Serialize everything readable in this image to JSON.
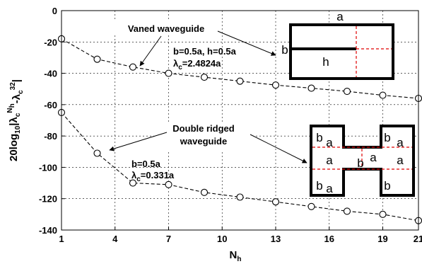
{
  "chart_data": {
    "type": "line",
    "xlabel": {
      "main": "N",
      "sub": "h"
    },
    "ylabel": {
      "a": "20log",
      "b": "10",
      "c": "|λ",
      "d": "c",
      "e": "N",
      "f": "h",
      "g": "-λ",
      "h": "c",
      "i": "32",
      "j": "|"
    },
    "xlim": [
      1,
      21
    ],
    "ylim": [
      -140,
      0
    ],
    "xticks": [
      1,
      4,
      7,
      10,
      13,
      16,
      19,
      21
    ],
    "yticks": [
      0,
      -20,
      -40,
      -60,
      -80,
      -100,
      -120,
      -140
    ],
    "grid": true,
    "series": [
      {
        "x": [
          1,
          3,
          5,
          7,
          9,
          11,
          13,
          15,
          17,
          19,
          21
        ],
        "y": [
          -18,
          -31,
          -36,
          -40,
          -42.5,
          -45,
          -47.5,
          -49.5,
          -51.5,
          -54,
          -56
        ],
        "marker": "circle",
        "line": "dashed"
      },
      {
        "x": [
          1,
          3,
          5,
          7,
          9,
          11,
          13,
          15,
          17,
          19,
          21
        ],
        "y": [
          -65,
          -91,
          -110,
          -111,
          -116,
          -119,
          -122,
          -125,
          -128,
          -130,
          -134
        ],
        "marker": "circle",
        "line": "dashed"
      }
    ],
    "annotations": {
      "vaned_title": "Vaned waveguide",
      "vaned_params_line1": "b=0.5a, h=0.5a",
      "vaned_params_line2": {
        "lambda": "λ",
        "sub": "c",
        "value": "=2.4824a"
      },
      "ridged_title_line1": "Double ridged",
      "ridged_title_line2": "waveguide",
      "ridged_params_line1": "b=0.5a",
      "ridged_params_line2": {
        "lambda": "λ",
        "sub": "c",
        "value": "=0.331a"
      }
    },
    "inset_vaned": {
      "a": "a",
      "b": "b",
      "h": "h"
    },
    "inset_ridged": {
      "b1": "b",
      "a1": "a",
      "b2": "b",
      "a2": "a",
      "a3": "a",
      "b3": "b",
      "a4": "a",
      "b4": "b",
      "a5": "a",
      "b5": "b",
      "a6": "a"
    }
  }
}
